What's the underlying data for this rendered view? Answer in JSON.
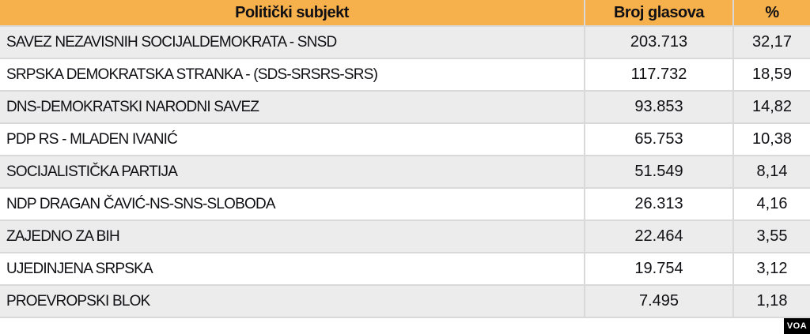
{
  "table": {
    "columns": [
      {
        "label": "Politički subjekt"
      },
      {
        "label": "Broj glasova"
      },
      {
        "label": "%"
      }
    ],
    "rows": [
      {
        "subject": "SAVEZ NEZAVISNIH SOCIJALDEMOKRATA - SNSD",
        "votes": "203.713",
        "percent": "32,17"
      },
      {
        "subject": "SRPSKA DEMOKRATSKA STRANKA - (SDS-SRSRS-SRS)",
        "votes": "117.732",
        "percent": "18,59"
      },
      {
        "subject": "DNS-DEMOKRATSKI NARODNI SAVEZ",
        "votes": "93.853",
        "percent": "14,82"
      },
      {
        "subject": "PDP RS - MLADEN IVANIĆ",
        "votes": "65.753",
        "percent": "10,38"
      },
      {
        "subject": "SOCIJALISTIČKA PARTIJA",
        "votes": "51.549",
        "percent": "8,14"
      },
      {
        "subject": "NDP DRAGAN ČAVIĆ-NS-SNS-SLOBODA",
        "votes": "26.313",
        "percent": "4,16"
      },
      {
        "subject": "ZAJEDNO ZA BIH",
        "votes": "22.464",
        "percent": "3,55"
      },
      {
        "subject": "UJEDINJENA SRPSKA",
        "votes": "19.754",
        "percent": "3,12"
      },
      {
        "subject": "PROEVROPSKI BLOK",
        "votes": "7.495",
        "percent": "1,18"
      }
    ]
  },
  "watermark": {
    "label": "VOA"
  },
  "colors": {
    "header_bg": "#f6b04c",
    "row_alt_bg": "#ececec",
    "row_bg": "#ffffff",
    "grid_line": "#d9d9d9",
    "watermark_bg": "#000000",
    "watermark_fg": "#ffffff"
  },
  "chart_data": {
    "type": "table",
    "title": "Politički subjekt / Broj glasova / %",
    "columns": [
      "Politički subjekt",
      "Broj glasova",
      "%"
    ],
    "rows": [
      [
        "SAVEZ NEZAVISNIH SOCIJALDEMOKRATA - SNSD",
        203713,
        32.17
      ],
      [
        "SRPSKA DEMOKRATSKA STRANKA - (SDS-SRSRS-SRS)",
        117732,
        18.59
      ],
      [
        "DNS-DEMOKRATSKI NARODNI SAVEZ",
        93853,
        14.82
      ],
      [
        "PDP RS - MLADEN IVANIĆ",
        65753,
        10.38
      ],
      [
        "SOCIJALISTIČKA PARTIJA",
        51549,
        8.14
      ],
      [
        "NDP DRAGAN ČAVIĆ-NS-SNS-SLOBODA",
        26313,
        4.16
      ],
      [
        "ZAJEDNO ZA BIH",
        22464,
        3.55
      ],
      [
        "UJEDINJENA SRPSKA",
        19754,
        3.12
      ],
      [
        "PROEVROPSKI BLOK",
        7495,
        1.18
      ]
    ]
  }
}
